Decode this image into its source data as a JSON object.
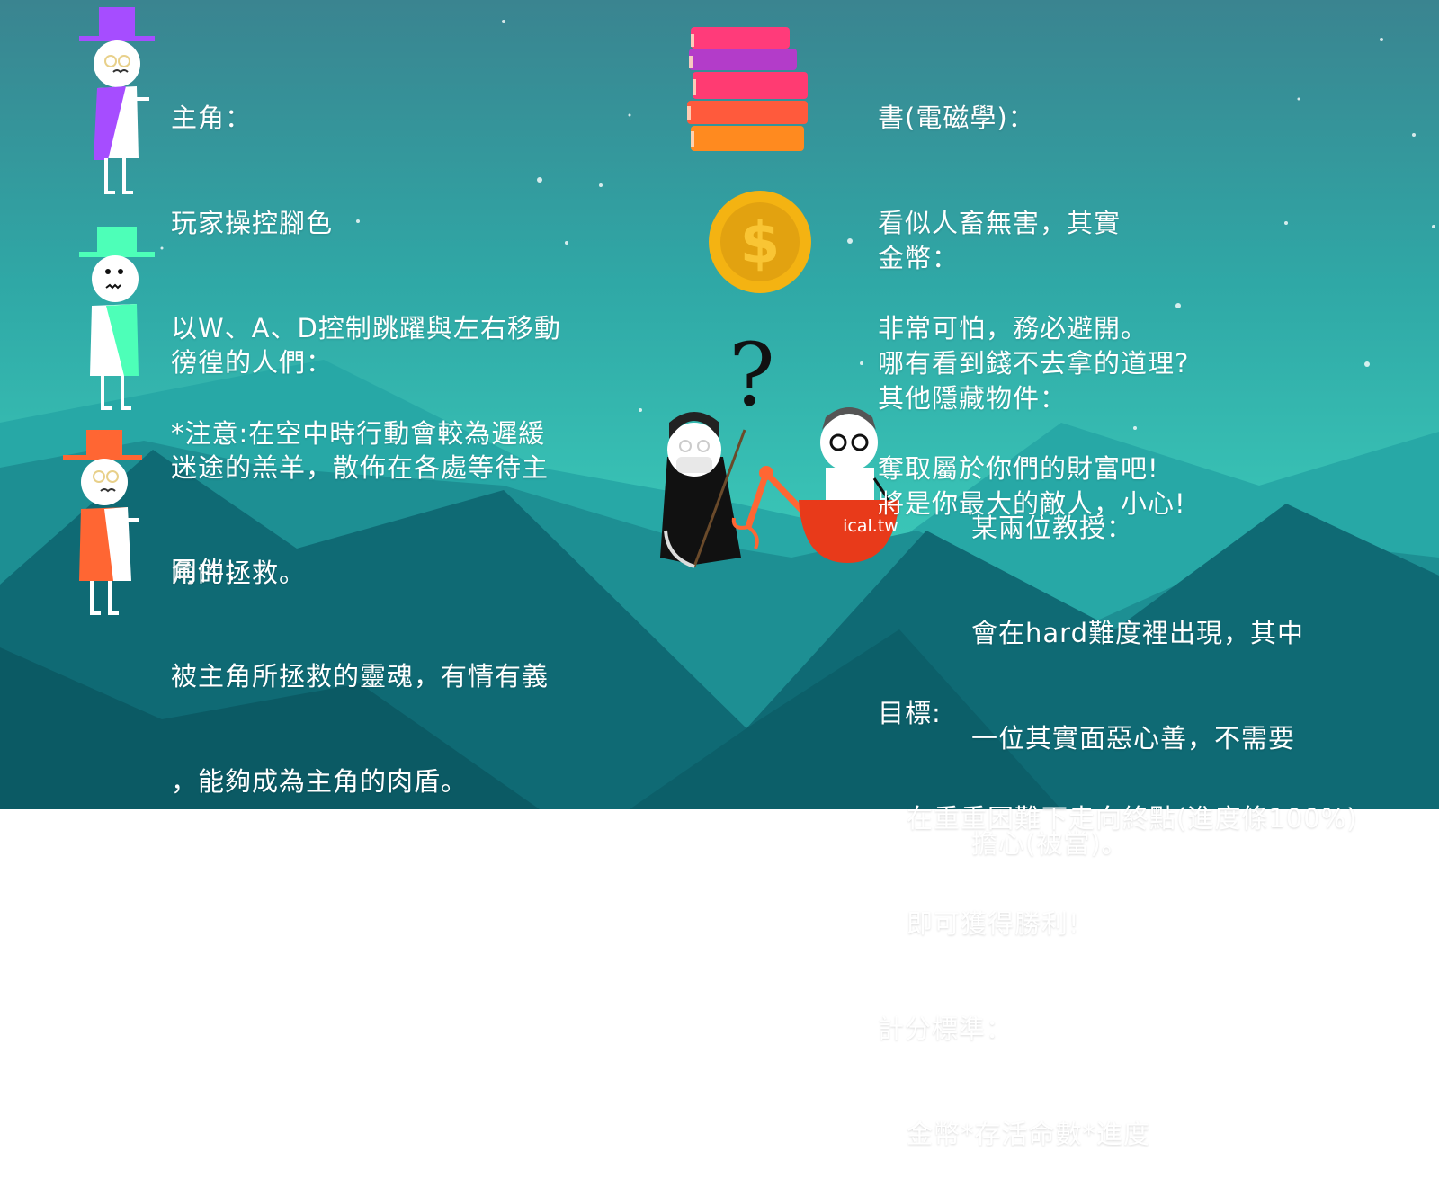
{
  "colors": {
    "sky_top": "#3a8a94",
    "sky_mid": "#39c4b4",
    "mountain_dark": "#0d5e6b",
    "mountain_mid": "#1f9a9c",
    "protagonist_hat": "#a64dff",
    "wanderer_hat": "#4dffb8",
    "companion_hat": "#ff6633"
  },
  "protagonist": {
    "title": "主角：",
    "lines": [
      "玩家操控腳色",
      "以W、A、D控制跳躍與左右移動",
      "*注意:在空中時行動會較為遲緩"
    ]
  },
  "wanderers": {
    "title": "徬徨的人們：",
    "lines": [
      "迷途的羔羊，散佈在各處等待主",
      "角的拯救。"
    ]
  },
  "companion": {
    "title": "同伴：",
    "lines": [
      "被主角所拯救的靈魂，有情有義",
      "，能夠成為主角的肉盾。"
    ]
  },
  "book": {
    "title": "書(電磁學)：",
    "lines": [
      "看似人畜無害，其實",
      "非常可怕，務必避開。"
    ]
  },
  "coin": {
    "title": "金幣：",
    "lines": [
      "哪有看到錢不去拿的道理?",
      "奪取屬於你們的財富吧!"
    ]
  },
  "hidden": {
    "title": "其他隱藏物件：",
    "lines": [
      "將是你最大的敵人，小心!"
    ]
  },
  "professors": {
    "title": "某兩位教授：",
    "lines": [
      "會在hard難度裡出現，其中",
      "一位其實面惡心善，不需要",
      "擔心(被當)。"
    ],
    "cart_label": "ical.tw",
    "question_mark": "?"
  },
  "goal": {
    "title": "目標:",
    "lines": [
      "在重重困難下走向終點(進度條100%)",
      "即可獲得勝利!"
    ]
  },
  "scoring": {
    "title": "計分標準：",
    "lines": [
      "金幣*存活命數*進度"
    ]
  }
}
